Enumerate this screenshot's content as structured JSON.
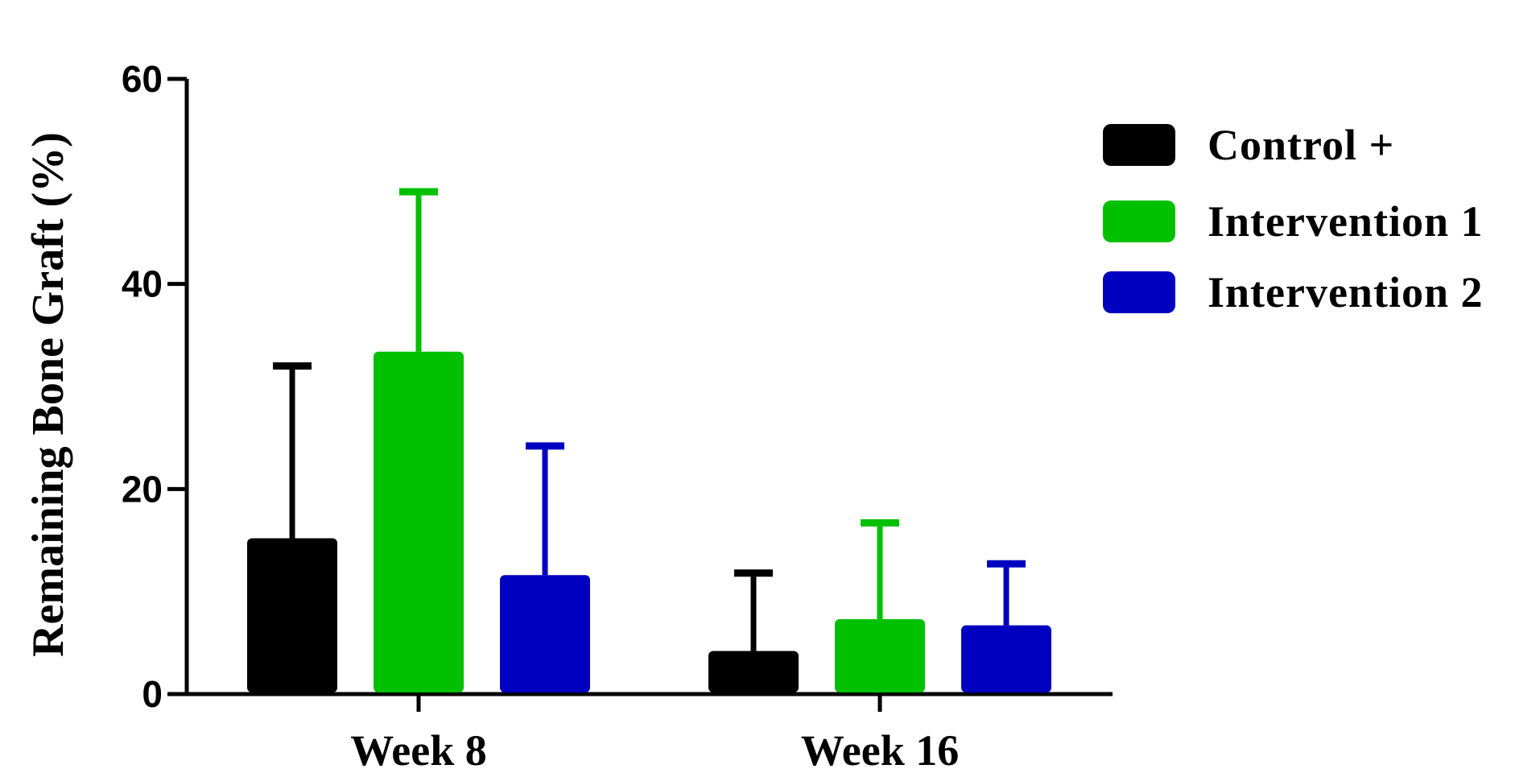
{
  "chart_data": {
    "type": "bar",
    "title": "",
    "xlabel": "",
    "ylabel": "Remaining Bone Graft (%)",
    "ylim": [
      0,
      60
    ],
    "yticks": [
      0,
      20,
      40,
      60
    ],
    "categories": [
      "Week 8",
      "Week 16"
    ],
    "series": [
      {
        "name": "Control +",
        "color": "#000000",
        "values": [
          15.2,
          4.2
        ],
        "errors": [
          16.8,
          7.6
        ]
      },
      {
        "name": "Intervention 1",
        "color": "#00c000",
        "values": [
          33.4,
          7.3
        ],
        "errors": [
          15.6,
          9.4
        ]
      },
      {
        "name": "Intervention 2",
        "color": "#0000c0",
        "values": [
          11.6,
          6.7
        ],
        "errors": [
          12.6,
          6.0
        ]
      }
    ],
    "legend": {
      "position": "top-right"
    },
    "grid": false
  }
}
